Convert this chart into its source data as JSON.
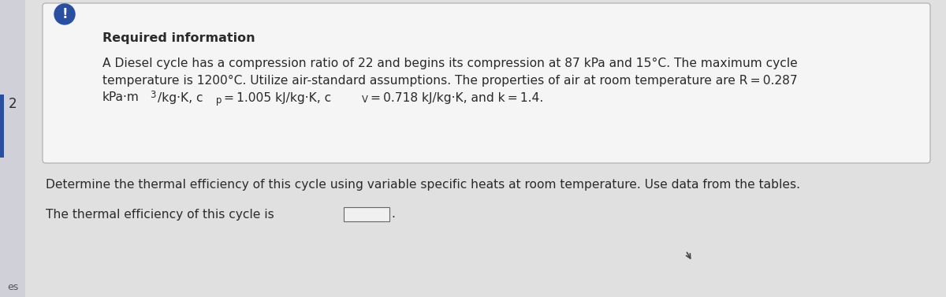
{
  "background_color": "#e0e0e0",
  "left_panel_color": "#d0d0d8",
  "box_bg_color": "#f5f5f5",
  "box_border_color": "#aaaaaa",
  "required_info_title": "Required information",
  "line1": "A Diesel cycle has a compression ratio of 22 and begins its compression at 87 kPa and 15°C. The maximum cycle",
  "line2": "temperature is 1200°C. Utilize air-standard assumptions. The properties of air at room temperature are R = 0.287",
  "line3a": "kPa·m",
  "line3_super": "3",
  "line3b": "/kg·K, c",
  "line3_sub_p": "p",
  "line3c": "= 1.005 kJ/kg·K, c",
  "line3_sub_v": "V",
  "line3d": "= 0.718 kJ/kg·K, and k = 1.4.",
  "question_line": "Determine the thermal efficiency of this cycle using variable specific heats at room temperature. Use data from the tables.",
  "answer_prefix": "The thermal efficiency of this cycle is",
  "icon_color": "#2a4fa0",
  "icon_text": "!",
  "icon_text_color": "#ffffff",
  "left_stripe_color": "#2a4fa0",
  "page_number": "2",
  "page_label": "es",
  "font_size_body": 11.2,
  "font_size_title": 11.5,
  "text_color": "#2a2a2a"
}
